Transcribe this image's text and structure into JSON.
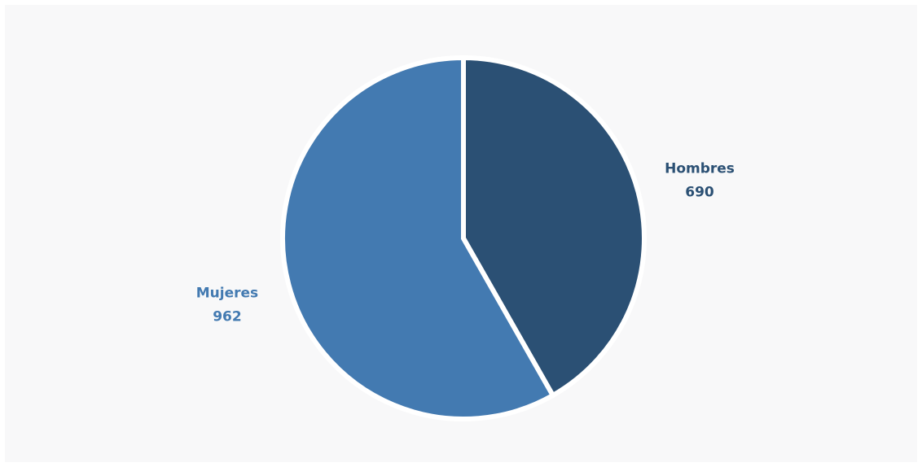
{
  "chart_data": {
    "type": "pie",
    "slices": [
      {
        "label": "Hombres",
        "value": 690,
        "value_label": "690",
        "color": "#2b5074"
      },
      {
        "label": "Mujeres",
        "value": 962,
        "value_label": "962",
        "color": "#437ab1"
      }
    ],
    "legend": "none",
    "start_angle_deg": 0,
    "direction": "clockwise"
  },
  "colors": {
    "background": "#f8f8f9",
    "separator": "#ffffff"
  }
}
